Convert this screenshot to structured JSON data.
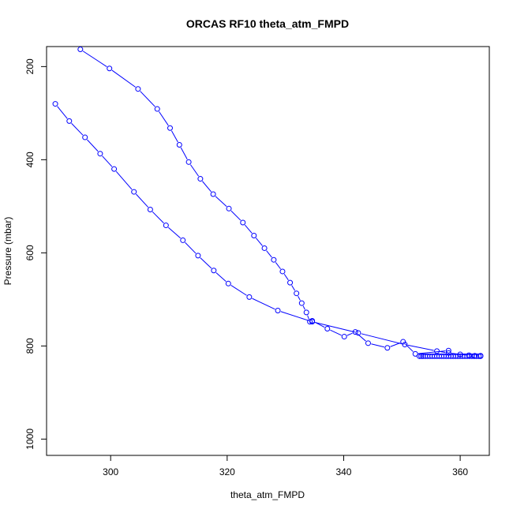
{
  "chart_data": {
    "type": "line",
    "title": "ORCAS RF10 theta_atm_FMPD",
    "xlabel": "theta_atm_FMPD",
    "ylabel": "Pressure (mbar)",
    "xlim": [
      289,
      365
    ],
    "ylim": [
      1035,
      157
    ],
    "y_reversed": true,
    "grid": false,
    "line_style": "line-with-open-circles",
    "series_color": "#0000ff",
    "xticks": [
      300,
      320,
      340,
      360
    ],
    "yticks": [
      200,
      400,
      600,
      800,
      1000
    ],
    "series": [
      {
        "x": [
          294.8,
          299.8,
          304.7,
          308.0,
          310.2,
          311.8,
          313.4,
          315.4,
          317.6,
          320.3,
          322.7,
          324.6,
          326.4,
          328.0,
          329.5,
          330.8,
          331.9,
          332.8,
          333.6,
          334.2,
          334.6,
          337.2,
          340.1,
          342.0,
          344.2,
          347.5,
          350.2,
          352.3,
          358.0
        ],
        "y": [
          163,
          204,
          248,
          291,
          332,
          368,
          405,
          441,
          474,
          505,
          535,
          563,
          590,
          615,
          640,
          664,
          687,
          708,
          728,
          748,
          746,
          763,
          780,
          770,
          794,
          804,
          791,
          817,
          810
        ]
      },
      {
        "x": [
          290.5,
          292.9,
          295.6,
          298.2,
          300.6,
          304.0,
          306.8,
          309.5,
          312.4,
          315.0,
          317.7,
          320.2,
          323.8,
          328.7,
          334.6,
          342.5,
          350.5,
          356.0,
          358.0,
          360.0,
          361.5,
          362.5,
          363.5
        ],
        "y": [
          280,
          317,
          352,
          387,
          420,
          469,
          507,
          541,
          573,
          606,
          638,
          666,
          695,
          724,
          748,
          772,
          797,
          811,
          815,
          818,
          820,
          821,
          821
        ]
      },
      {
        "x": [
          353.0,
          353.3,
          353.6,
          354.0,
          354.4,
          354.8,
          355.2,
          355.6,
          356.0,
          356.4,
          356.8,
          357.2,
          357.6,
          358.0,
          358.4,
          358.8,
          359.2,
          359.6,
          360.0,
          360.4,
          360.8,
          361.2,
          361.6,
          362.0,
          362.4,
          362.8,
          363.2,
          363.5
        ],
        "y": [
          822,
          822,
          822,
          822,
          822,
          822,
          822,
          822,
          822,
          822,
          822,
          822,
          822,
          822,
          822,
          822,
          822,
          822,
          822,
          822,
          822,
          822,
          822,
          822,
          822,
          822,
          822,
          822
        ]
      }
    ]
  }
}
